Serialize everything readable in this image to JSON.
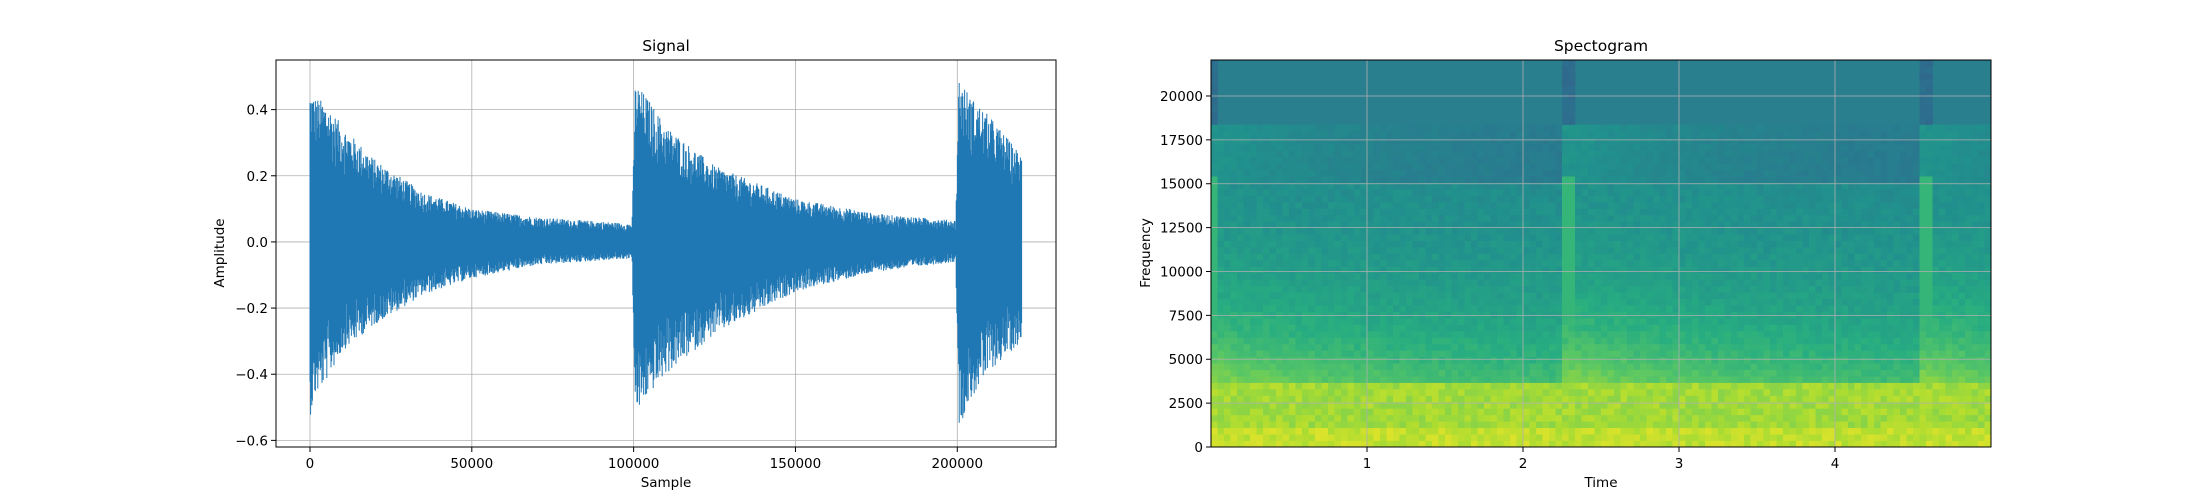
{
  "chart_data": [
    {
      "type": "line",
      "title": "Signal",
      "xlabel": "Sample",
      "ylabel": "Amplitude",
      "xlim": [
        -10500,
        230500
      ],
      "ylim": [
        -0.62,
        0.55
      ],
      "xticks": [
        0,
        50000,
        100000,
        150000,
        200000
      ],
      "xtick_labels": [
        "0",
        "50000",
        "100000",
        "150000",
        "200000"
      ],
      "yticks": [
        -0.6,
        -0.4,
        -0.2,
        0.0,
        0.2,
        0.4
      ],
      "ytick_labels": [
        "−0.6",
        "−0.4",
        "−0.2",
        "0.0",
        "0.2",
        "0.4"
      ],
      "grid": true,
      "series": [
        {
          "color": "#1f77b4",
          "envelope": {
            "x": [
              0,
              1500,
              5000,
              10000,
              20000,
              35000,
              50000,
              70000,
              99500,
              100500,
              104000,
              110000,
              125000,
              150000,
              175000,
              199500,
              200500,
              204000,
              210000,
              220000
            ],
            "upper": [
              0.46,
              0.44,
              0.42,
              0.35,
              0.25,
              0.15,
              0.1,
              0.075,
              0.055,
              0.48,
              0.44,
              0.35,
              0.23,
              0.13,
              0.085,
              0.065,
              0.5,
              0.44,
              0.38,
              0.26
            ],
            "lower": [
              -0.53,
              -0.47,
              -0.42,
              -0.33,
              -0.25,
              -0.16,
              -0.11,
              -0.07,
              -0.05,
              -0.53,
              -0.47,
              -0.4,
              -0.28,
              -0.15,
              -0.09,
              -0.06,
              -0.56,
              -0.48,
              -0.39,
              -0.3
            ]
          }
        }
      ]
    },
    {
      "type": "heatmap",
      "title": "Spectogram",
      "xlabel": "Time",
      "ylabel": "Frequency",
      "xlim": [
        0.0,
        5.0
      ],
      "ylim": [
        0,
        22050
      ],
      "xticks": [
        1,
        2,
        3,
        4
      ],
      "xtick_labels": [
        "1",
        "2",
        "3",
        "4"
      ],
      "yticks": [
        0,
        2500,
        5000,
        7500,
        10000,
        12500,
        15000,
        17500,
        20000
      ],
      "ytick_labels": [
        "0",
        "2500",
        "5000",
        "7500",
        "10000",
        "12500",
        "15000",
        "17500",
        "20000"
      ],
      "grid": true,
      "colormap": "viridis",
      "onsets": [
        0.0,
        2.27,
        4.55
      ],
      "colors": {
        "background": "#2a7f8e",
        "mid": "#35a47f",
        "bright": "#b8de29",
        "low": "#d5e21b"
      }
    }
  ]
}
